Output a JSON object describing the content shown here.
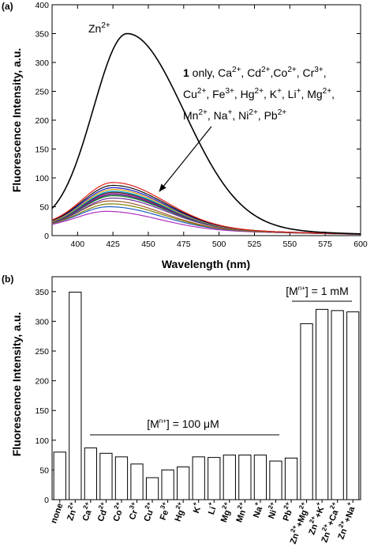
{
  "chart_data": [
    {
      "panel": "(a)",
      "type": "line",
      "xlabel": "Wavelength (nm)",
      "ylabel": "Fluorescence Intensity, a.u.",
      "xlim": [
        382,
        600
      ],
      "ylim": [
        0,
        400
      ],
      "xticks": [
        400,
        425,
        450,
        475,
        500,
        525,
        550,
        575,
        600
      ],
      "yticks": [
        0,
        50,
        100,
        150,
        200,
        250,
        300,
        350,
        400
      ],
      "annotations": {
        "zn_label": "Zn",
        "zn_sup": "2+",
        "others_l1": [
          [
            "1",
            "b"
          ],
          [
            " only, Ca",
            ""
          ],
          [
            "2+",
            "sup"
          ],
          [
            ", Cd",
            ""
          ],
          [
            "2+",
            "sup"
          ],
          [
            ",Co",
            ""
          ],
          [
            "2+",
            "sup"
          ],
          [
            ", Cr",
            ""
          ],
          [
            "3+",
            "sup"
          ],
          [
            ",",
            ""
          ]
        ],
        "others_l2": [
          [
            "Cu",
            ""
          ],
          [
            "2+",
            "sup"
          ],
          [
            ", Fe",
            ""
          ],
          [
            "3+",
            "sup"
          ],
          [
            ", Hg",
            ""
          ],
          [
            "2+",
            "sup"
          ],
          [
            ", K",
            ""
          ],
          [
            "+",
            "sup"
          ],
          [
            ", Li",
            ""
          ],
          [
            "+",
            "sup"
          ],
          [
            ", Mg",
            ""
          ],
          [
            "2+",
            "sup"
          ],
          [
            ",",
            ""
          ]
        ],
        "others_l3": [
          [
            "Mn",
            ""
          ],
          [
            "2+",
            "sup"
          ],
          [
            ", Na",
            ""
          ],
          [
            "+",
            "sup"
          ],
          [
            ", Ni",
            ""
          ],
          [
            "2+",
            "sup"
          ],
          [
            ", Pb",
            ""
          ],
          [
            "2+",
            "sup"
          ]
        ]
      },
      "series": [
        {
          "color": "#000000",
          "peak_x": 435,
          "peak": 350,
          "base": 18,
          "sigma_left": 24,
          "sigma_right": 40
        },
        {
          "color": "#e0201a",
          "peak_x": 425,
          "peak": 92,
          "base": 16,
          "sigma_left": 22,
          "sigma_right": 36
        },
        {
          "color": "#101010",
          "peak_x": 425,
          "peak": 87,
          "base": 16,
          "sigma_left": 22,
          "sigma_right": 36
        },
        {
          "color": "#1a1ad0",
          "peak_x": 425,
          "peak": 83,
          "base": 16,
          "sigma_left": 22,
          "sigma_right": 36
        },
        {
          "color": "#e0a000",
          "peak_x": 425,
          "peak": 80,
          "base": 15,
          "sigma_left": 22,
          "sigma_right": 36
        },
        {
          "color": "#00a0d0",
          "peak_x": 425,
          "peak": 77,
          "base": 15,
          "sigma_left": 22,
          "sigma_right": 36
        },
        {
          "color": "#303030",
          "peak_x": 425,
          "peak": 75,
          "base": 15,
          "sigma_left": 22,
          "sigma_right": 36
        },
        {
          "color": "#c0208a",
          "peak_x": 425,
          "peak": 73,
          "base": 15,
          "sigma_left": 22,
          "sigma_right": 36
        },
        {
          "color": "#2a2a90",
          "peak_x": 425,
          "peak": 71,
          "base": 15,
          "sigma_left": 22,
          "sigma_right": 36
        },
        {
          "color": "#1a8a1a",
          "peak_x": 425,
          "peak": 69,
          "base": 15,
          "sigma_left": 22,
          "sigma_right": 36
        },
        {
          "color": "#6a2aa0",
          "peak_x": 425,
          "peak": 65,
          "base": 15,
          "sigma_left": 22,
          "sigma_right": 36
        },
        {
          "color": "#a05a2a",
          "peak_x": 423,
          "peak": 60,
          "base": 14,
          "sigma_left": 22,
          "sigma_right": 36
        },
        {
          "color": "#808000",
          "peak_x": 423,
          "peak": 55,
          "base": 14,
          "sigma_left": 22,
          "sigma_right": 36
        },
        {
          "color": "#2060c0",
          "peak_x": 422,
          "peak": 50,
          "base": 14,
          "sigma_left": 22,
          "sigma_right": 36
        },
        {
          "color": "#b030c0",
          "peak_x": 420,
          "peak": 42,
          "base": 13,
          "sigma_left": 22,
          "sigma_right": 36
        }
      ]
    },
    {
      "panel": "(b)",
      "type": "bar",
      "ylabel": "Fluorescence Intensity, a.u.",
      "ylim": [
        0,
        375
      ],
      "yticks": [
        0,
        50,
        100,
        150,
        200,
        250,
        300,
        350
      ],
      "categories": [
        [
          [
            "none",
            ""
          ]
        ],
        [
          [
            "Zn",
            ""
          ],
          [
            "2+",
            "sup"
          ]
        ],
        [
          [
            "Ca",
            ""
          ],
          [
            "2+",
            "sup"
          ]
        ],
        [
          [
            "Cd",
            ""
          ],
          [
            "2+",
            "sup"
          ]
        ],
        [
          [
            "Co",
            ""
          ],
          [
            "2+",
            "sup"
          ]
        ],
        [
          [
            "Cr",
            ""
          ],
          [
            "3+",
            "sup"
          ]
        ],
        [
          [
            "Cu",
            ""
          ],
          [
            "2+",
            "sup"
          ]
        ],
        [
          [
            "Fe",
            ""
          ],
          [
            "3+",
            "sup"
          ]
        ],
        [
          [
            "Hg",
            ""
          ],
          [
            "2+",
            "sup"
          ]
        ],
        [
          [
            "K",
            ""
          ],
          [
            "+",
            "sup"
          ]
        ],
        [
          [
            "Li",
            ""
          ],
          [
            "+",
            "sup"
          ]
        ],
        [
          [
            "Mg",
            ""
          ],
          [
            "2+",
            "sup"
          ]
        ],
        [
          [
            "Mn",
            ""
          ],
          [
            "2+",
            "sup"
          ]
        ],
        [
          [
            "Na",
            ""
          ],
          [
            "+",
            "sup"
          ]
        ],
        [
          [
            "Ni",
            ""
          ],
          [
            "2+",
            "sup"
          ]
        ],
        [
          [
            "Pb",
            ""
          ],
          [
            "2+",
            "sup"
          ]
        ],
        [
          [
            "Zn",
            ""
          ],
          [
            "2+",
            "sup"
          ],
          [
            "+Mg",
            ""
          ],
          [
            "2+",
            "sup"
          ]
        ],
        [
          [
            "Zn",
            ""
          ],
          [
            "2+",
            "sup"
          ],
          [
            "+K",
            ""
          ],
          [
            "+",
            "sup"
          ]
        ],
        [
          [
            "Zn",
            ""
          ],
          [
            "2+",
            "sup"
          ],
          [
            "+Ca",
            ""
          ],
          [
            "2+",
            "sup"
          ]
        ],
        [
          [
            "Zn",
            ""
          ],
          [
            "2+",
            "sup"
          ],
          [
            "+Na",
            ""
          ],
          [
            "+",
            "sup"
          ]
        ]
      ],
      "values": [
        80,
        349,
        87,
        78,
        72,
        60,
        37,
        50,
        55,
        72,
        71,
        75,
        75,
        75,
        65,
        70,
        296,
        320,
        318,
        316
      ],
      "annotations": {
        "group1": [
          [
            "[M",
            ""
          ],
          [
            "n+",
            "sup"
          ],
          [
            "] = 100 μM",
            ""
          ]
        ],
        "group2": [
          [
            "[M",
            ""
          ],
          [
            "n+",
            "sup"
          ],
          [
            "] = 1 mM",
            ""
          ]
        ]
      }
    }
  ]
}
